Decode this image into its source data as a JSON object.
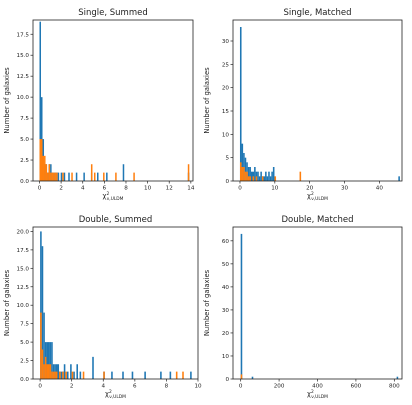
{
  "figure": {
    "colors": {
      "blue": "#1f77b4",
      "orange": "#ff7f0e"
    }
  },
  "chart_data": [
    {
      "type": "bar",
      "title": "Single, Summed",
      "xlabel": "χ²ν,ULDM",
      "ylabel": "Number of galaxies",
      "xlim": [
        -0.6,
        14.2
      ],
      "ylim": [
        0,
        19.2
      ],
      "xticks": [
        0,
        2,
        4,
        6,
        8,
        10,
        12,
        14
      ],
      "yticks": [
        0,
        2.5,
        5.0,
        7.5,
        10.0,
        12.5,
        15.0,
        17.5
      ],
      "ytick_labels": [
        "0.0",
        "2.5",
        "5.0",
        "7.5",
        "10.0",
        "12.5",
        "15.0",
        "17.5"
      ],
      "series": [
        {
          "color": "#1f77b4",
          "bin_width": 0.14,
          "bins": [
            [
              0.0,
              19
            ],
            [
              0.14,
              10
            ],
            [
              0.28,
              5
            ],
            [
              0.42,
              2
            ],
            [
              0.56,
              2
            ],
            [
              0.7,
              1
            ],
            [
              0.84,
              2
            ],
            [
              0.98,
              2
            ],
            [
              1.12,
              1
            ],
            [
              1.26,
              1
            ],
            [
              1.4,
              1
            ],
            [
              1.54,
              1
            ],
            [
              1.68,
              1
            ],
            [
              1.96,
              1
            ],
            [
              2.24,
              1
            ],
            [
              2.66,
              1
            ],
            [
              3.36,
              1
            ],
            [
              4.06,
              1
            ],
            [
              4.76,
              1
            ],
            [
              5.32,
              1
            ],
            [
              6.16,
              1
            ],
            [
              7.7,
              2
            ],
            [
              13.72,
              1
            ]
          ]
        },
        {
          "color": "#ff7f0e",
          "bin_width": 0.14,
          "bins": [
            [
              0.0,
              5
            ],
            [
              0.14,
              5
            ],
            [
              0.28,
              3
            ],
            [
              0.42,
              3
            ],
            [
              0.56,
              2
            ],
            [
              0.7,
              1
            ],
            [
              0.84,
              2
            ],
            [
              0.98,
              1
            ],
            [
              1.12,
              1
            ],
            [
              1.26,
              1
            ],
            [
              1.4,
              1
            ],
            [
              1.54,
              1
            ],
            [
              2.1,
              1
            ],
            [
              2.94,
              1
            ],
            [
              4.76,
              2
            ],
            [
              5.04,
              1
            ],
            [
              5.88,
              1
            ],
            [
              7.0,
              1
            ],
            [
              8.68,
              1
            ],
            [
              13.72,
              2
            ]
          ]
        }
      ]
    },
    {
      "type": "bar",
      "title": "Single, Matched",
      "xlabel": "χ²ν,ULDM",
      "ylabel": "Number of galaxies",
      "xlim": [
        -2,
        46.5
      ],
      "ylim": [
        0,
        34.5
      ],
      "xticks": [
        0,
        10,
        20,
        30,
        40
      ],
      "yticks": [
        0,
        5,
        10,
        15,
        20,
        25,
        30
      ],
      "ytick_labels": [
        "0",
        "5",
        "10",
        "15",
        "20",
        "25",
        "30"
      ],
      "series": [
        {
          "color": "#1f77b4",
          "bin_width": 0.45,
          "bins": [
            [
              0.0,
              33
            ],
            [
              0.45,
              8
            ],
            [
              0.9,
              6
            ],
            [
              1.35,
              5
            ],
            [
              1.8,
              4
            ],
            [
              2.25,
              3
            ],
            [
              2.7,
              3
            ],
            [
              3.15,
              2
            ],
            [
              3.6,
              2
            ],
            [
              4.05,
              3
            ],
            [
              4.5,
              2
            ],
            [
              4.95,
              2
            ],
            [
              5.4,
              1
            ],
            [
              5.85,
              2
            ],
            [
              6.3,
              1
            ],
            [
              6.75,
              1
            ],
            [
              7.2,
              2
            ],
            [
              7.65,
              1
            ],
            [
              8.1,
              2
            ],
            [
              8.55,
              1
            ],
            [
              9.0,
              2
            ],
            [
              9.45,
              3
            ],
            [
              45.45,
              1
            ]
          ]
        },
        {
          "color": "#ff7f0e",
          "bin_width": 0.45,
          "bins": [
            [
              0.0,
              4
            ],
            [
              0.45,
              3
            ],
            [
              0.9,
              3
            ],
            [
              1.35,
              2
            ],
            [
              1.8,
              2
            ],
            [
              2.25,
              1
            ],
            [
              2.7,
              1
            ],
            [
              3.6,
              1
            ],
            [
              4.5,
              1
            ],
            [
              6.3,
              1
            ],
            [
              9.9,
              1
            ],
            [
              17.1,
              2
            ]
          ]
        }
      ]
    },
    {
      "type": "bar",
      "title": "Double, Summed",
      "xlabel": "χ²ν,ULDM",
      "ylabel": "Number of galaxies",
      "xlim": [
        -0.45,
        10
      ],
      "ylim": [
        0,
        20.6
      ],
      "xticks": [
        0,
        2,
        4,
        6,
        8,
        10
      ],
      "yticks": [
        0,
        2.5,
        5.0,
        7.5,
        10.0,
        12.5,
        15.0,
        17.5,
        20.0
      ],
      "ytick_labels": [
        "0.0",
        "2.5",
        "5.0",
        "7.5",
        "10.0",
        "12.5",
        "15.0",
        "17.5",
        "20.0"
      ],
      "series": [
        {
          "color": "#1f77b4",
          "bin_width": 0.1,
          "bins": [
            [
              0.0,
              20
            ],
            [
              0.1,
              18
            ],
            [
              0.2,
              9
            ],
            [
              0.3,
              5
            ],
            [
              0.4,
              5
            ],
            [
              0.5,
              5
            ],
            [
              0.6,
              5
            ],
            [
              0.7,
              5
            ],
            [
              0.8,
              2
            ],
            [
              0.9,
              2
            ],
            [
              1.0,
              2
            ],
            [
              1.1,
              2
            ],
            [
              1.2,
              1
            ],
            [
              1.3,
              1
            ],
            [
              1.4,
              1
            ],
            [
              1.5,
              2
            ],
            [
              1.7,
              1
            ],
            [
              1.9,
              2
            ],
            [
              2.1,
              1
            ],
            [
              2.3,
              2
            ],
            [
              2.5,
              1
            ],
            [
              3.3,
              3
            ],
            [
              4.0,
              1
            ],
            [
              4.5,
              1
            ],
            [
              5.2,
              1
            ],
            [
              5.8,
              1
            ],
            [
              6.6,
              1
            ],
            [
              7.6,
              1
            ],
            [
              8.2,
              1
            ],
            [
              9.5,
              1
            ]
          ]
        },
        {
          "color": "#ff7f0e",
          "bin_width": 0.1,
          "bins": [
            [
              0.0,
              9
            ],
            [
              0.1,
              4
            ],
            [
              0.2,
              2
            ],
            [
              0.3,
              3
            ],
            [
              0.4,
              2
            ],
            [
              0.5,
              2
            ],
            [
              0.6,
              2
            ],
            [
              0.7,
              1
            ],
            [
              0.8,
              1
            ],
            [
              0.9,
              1
            ],
            [
              1.0,
              1
            ],
            [
              1.2,
              1
            ],
            [
              1.4,
              1
            ],
            [
              1.6,
              1
            ],
            [
              2.0,
              1
            ],
            [
              2.7,
              1
            ],
            [
              4.0,
              1
            ],
            [
              8.6,
              1
            ],
            [
              9.0,
              1
            ]
          ]
        }
      ]
    },
    {
      "type": "bar",
      "title": "Double, Matched",
      "xlabel": "χ²ν,ULDM",
      "ylabel": "Number of galaxies",
      "xlim": [
        -40,
        840
      ],
      "ylim": [
        0,
        66
      ],
      "xticks": [
        0,
        200,
        400,
        600,
        800
      ],
      "yticks": [
        0,
        10,
        20,
        30,
        40,
        50,
        60
      ],
      "ytick_labels": [
        "0",
        "10",
        "20",
        "30",
        "40",
        "50",
        "60"
      ],
      "series": [
        {
          "color": "#1f77b4",
          "bin_width": 8.2,
          "bins": [
            [
              0.0,
              63
            ],
            [
              57.4,
              1
            ],
            [
              812.0,
              1
            ]
          ]
        },
        {
          "color": "#ff7f0e",
          "bin_width": 8.2,
          "bins": [
            [
              0.0,
              2
            ]
          ]
        }
      ]
    }
  ]
}
